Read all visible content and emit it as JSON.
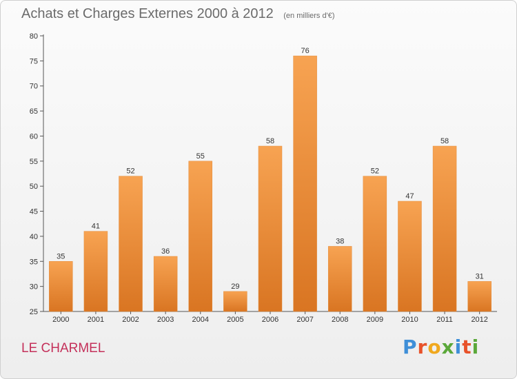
{
  "header": {
    "title": "Achats et Charges Externes 2000 à 2012",
    "subtitle": "(en milliers d'€)"
  },
  "footer": {
    "commune": "LE CHARMEL",
    "brand": "Proxiti"
  },
  "colors": {
    "bar_light": "#f7a352",
    "bar_dark": "#d97522",
    "commune_text": "#c4305a",
    "brand_letters": [
      "#3f8fd8",
      "#e8522a",
      "#f0a81e",
      "#5ba83a",
      "#3f8fd8",
      "#e8522a",
      "#5ba83a"
    ]
  },
  "chart_data": {
    "type": "bar",
    "title": "Achats et Charges Externes 2000 à 2012",
    "subtitle": "(en milliers d'€)",
    "categories": [
      "2000",
      "2001",
      "2002",
      "2003",
      "2004",
      "2005",
      "2006",
      "2007",
      "2008",
      "2009",
      "2010",
      "2011",
      "2012"
    ],
    "values": [
      35,
      41,
      52,
      36,
      55,
      29,
      58,
      76,
      38,
      52,
      47,
      58,
      31
    ],
    "ylim": [
      25,
      80
    ],
    "yticks": [
      25,
      30,
      35,
      40,
      45,
      50,
      55,
      60,
      65,
      70,
      75,
      80
    ],
    "grid": false,
    "data_labels": true
  }
}
